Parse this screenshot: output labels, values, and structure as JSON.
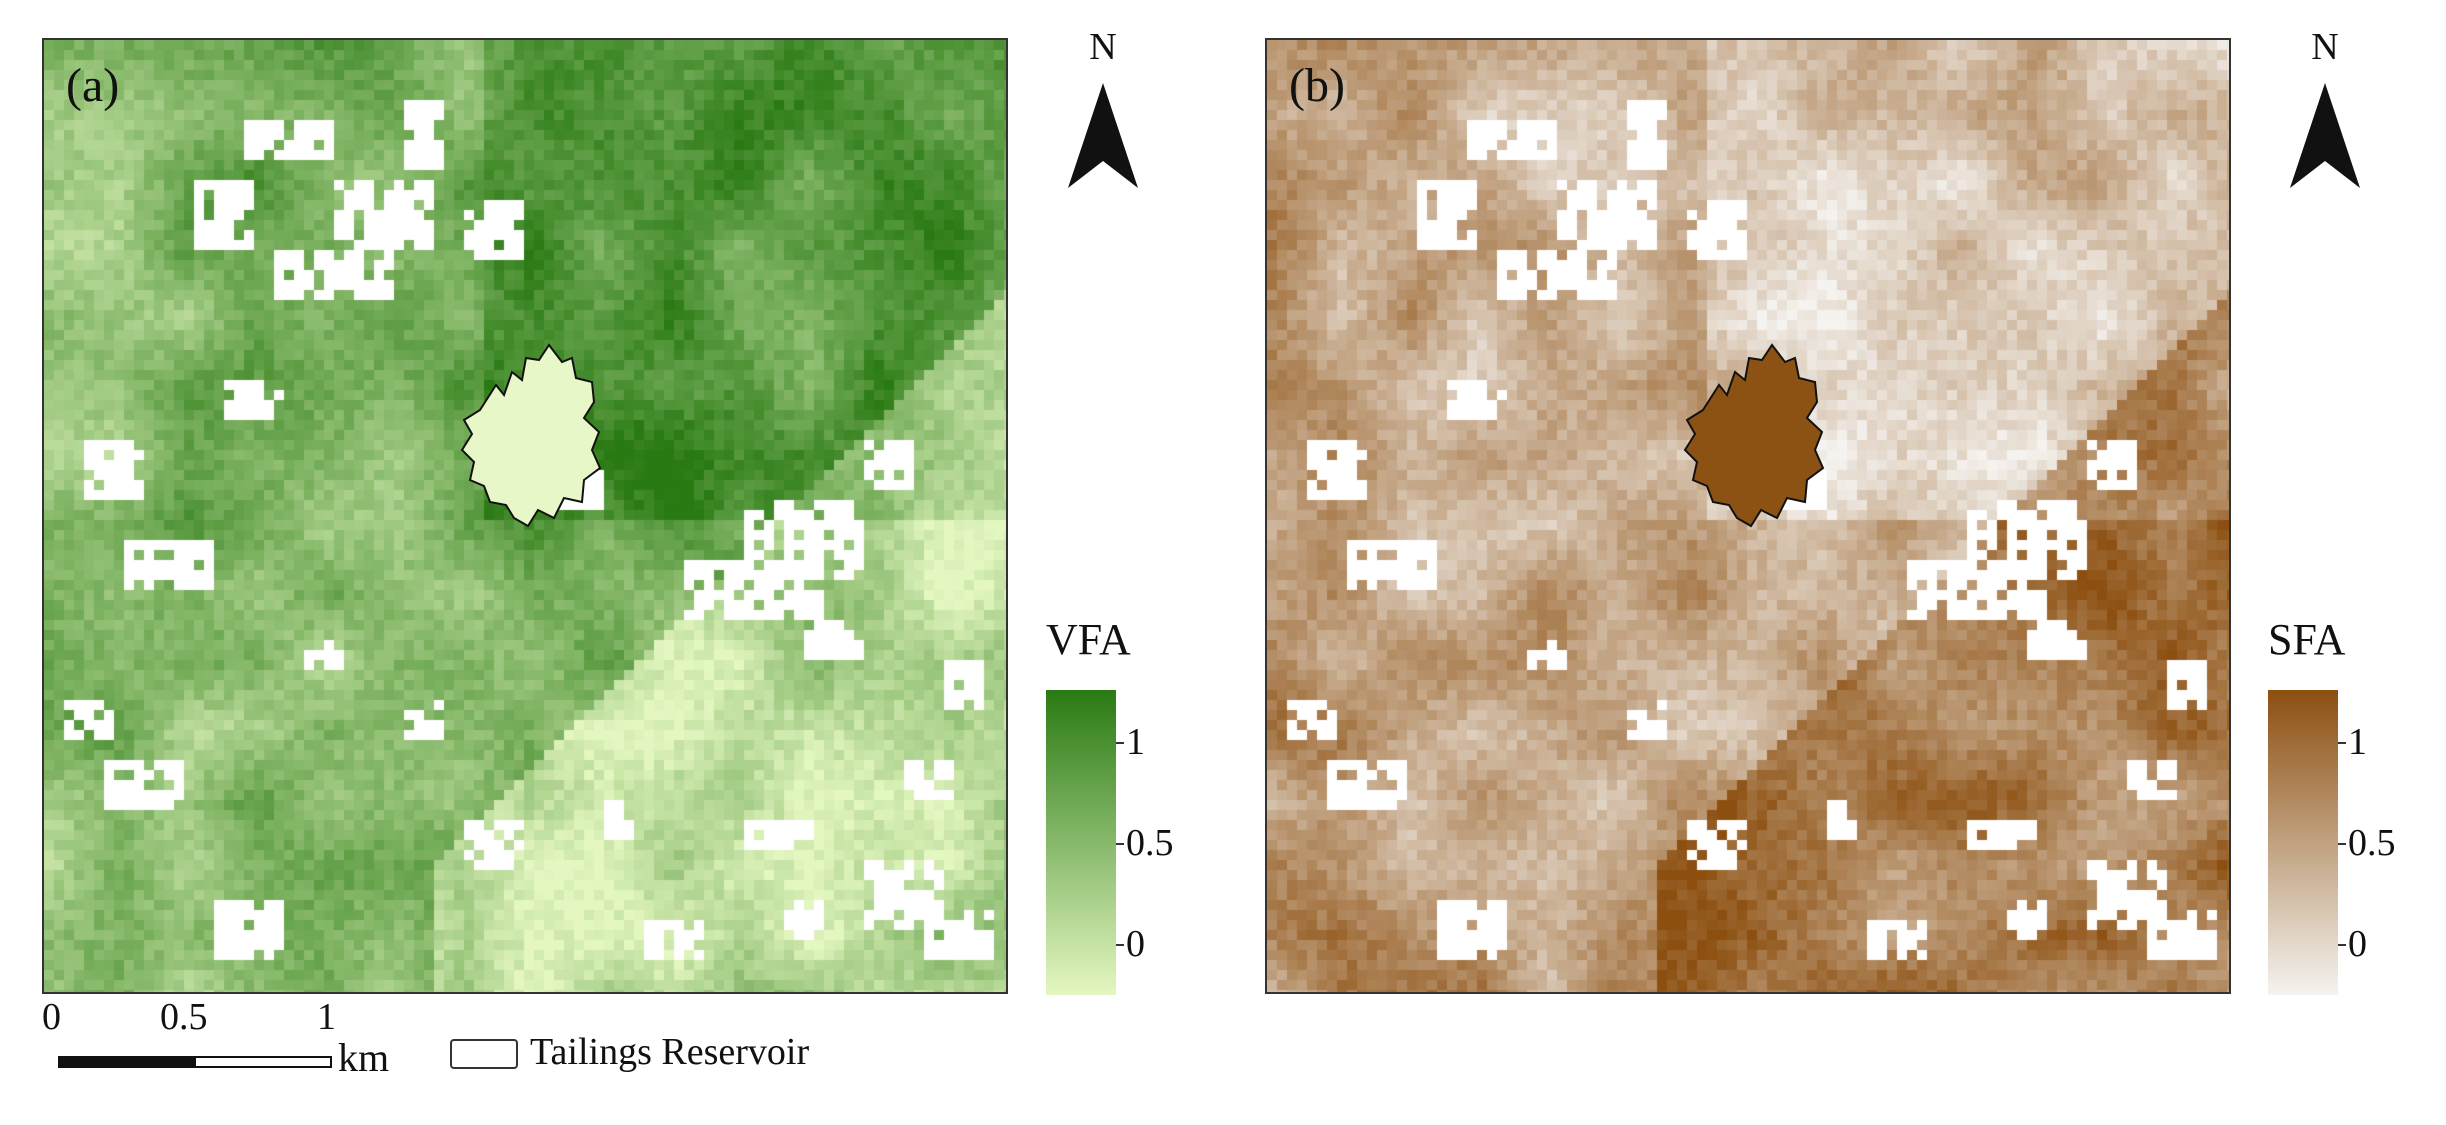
{
  "panels": [
    {
      "label": "(a)",
      "legend_title": "VFA",
      "ticks": [
        "1",
        "0.5",
        "0"
      ],
      "tick_values": [
        1,
        0.5,
        0
      ],
      "color_low": "#e4f7c1",
      "color_high": "#2a7a14",
      "reservoir_fill": "#e8f7c8",
      "north_label": "N",
      "seed": 11
    },
    {
      "label": "(b)",
      "legend_title": "SFA",
      "ticks": [
        "1",
        "0.5",
        "0"
      ],
      "tick_values": [
        1,
        0.5,
        0
      ],
      "color_low": "#f5f3f0",
      "color_high": "#8c4f10",
      "reservoir_fill": "#8c5214",
      "north_label": "N",
      "seed": 29
    }
  ],
  "scalebar": {
    "labels": [
      "0",
      "0.5",
      "1"
    ],
    "unit": "km"
  },
  "key": {
    "label": "Tailings Reservoir"
  },
  "colors": {
    "border": "#333333",
    "reservoir_outline": "#111111",
    "nodata": "#ffffff"
  }
}
